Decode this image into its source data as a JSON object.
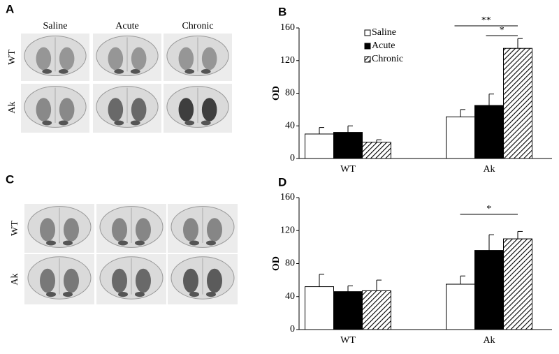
{
  "panel_labels": [
    "A",
    "B",
    "C",
    "D"
  ],
  "image_panels": [
    {
      "columns": [
        "Saline",
        "Acute",
        "Chronic"
      ],
      "rows": [
        "WT",
        "Ak"
      ]
    },
    {
      "rows": [
        "WT",
        "Ak"
      ]
    }
  ],
  "chart_data": [
    {
      "type": "bar",
      "ylabel": "OD",
      "categories": [
        "WT",
        "Ak"
      ],
      "ylim": [
        0,
        160
      ],
      "yticks": [
        0,
        40,
        80,
        120,
        160
      ],
      "legend": "top",
      "series": [
        {
          "name": "Saline",
          "color": "#ffffff",
          "values": [
            30,
            51
          ],
          "errors": [
            8,
            9
          ]
        },
        {
          "name": "Acute",
          "color": "#000000",
          "values": [
            32,
            65
          ],
          "errors": [
            8,
            14
          ]
        },
        {
          "name": "Chronic",
          "color": "#000000",
          "hatch": true,
          "values": [
            20,
            135
          ],
          "errors": [
            3,
            12
          ]
        }
      ],
      "annotations": [
        "**",
        "*"
      ]
    },
    {
      "type": "bar",
      "ylabel": "OD",
      "categories": [
        "WT",
        "Ak"
      ],
      "ylim": [
        0,
        160
      ],
      "yticks": [
        0,
        40,
        80,
        120,
        160
      ],
      "series": [
        {
          "name": "Saline",
          "color": "#ffffff",
          "values": [
            52,
            55
          ],
          "errors": [
            15,
            10
          ]
        },
        {
          "name": "Acute",
          "color": "#000000",
          "values": [
            46,
            96
          ],
          "errors": [
            7,
            19
          ]
        },
        {
          "name": "Chronic",
          "color": "#000000",
          "hatch": true,
          "values": [
            47,
            110
          ],
          "errors": [
            13,
            9
          ]
        }
      ],
      "annotations": [
        "*"
      ]
    }
  ]
}
